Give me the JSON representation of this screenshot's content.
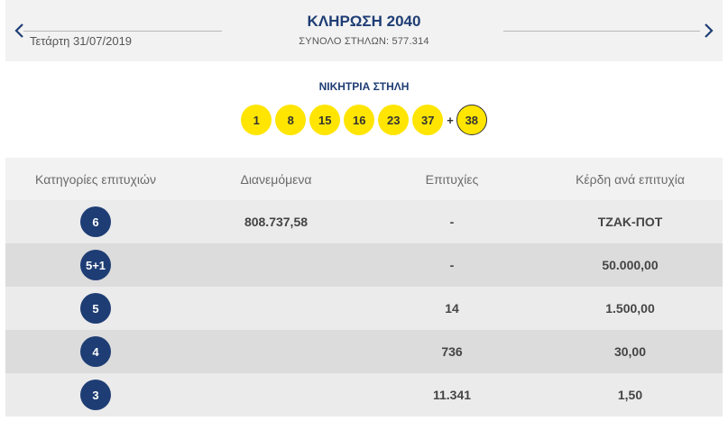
{
  "header": {
    "date": "Τετάρτη 31/07/2019",
    "title": "ΚΛΗΡΩΣΗ 2040",
    "total_columns": "ΣΥΝΟΛΟ ΣΤΗΛΩΝ: 577.314",
    "prev_icon": "chevron-left-icon",
    "next_icon": "chevron-right-icon"
  },
  "winning": {
    "label": "ΝΙΚΗΤΡΙΑ ΣΤΗΛΗ",
    "numbers": [
      "1",
      "8",
      "15",
      "16",
      "23",
      "37"
    ],
    "plus": "+",
    "joker": "38"
  },
  "table": {
    "headers": [
      "Κατηγορίες επιτυχιών",
      "Διανεμόμενα",
      "Επιτυχίες",
      "Κέρδη ανά επιτυχία"
    ],
    "rows": [
      {
        "category": "6",
        "distributed": "808.737,58",
        "winners": "-",
        "prize": "ΤΖΑΚ-ΠΟΤ"
      },
      {
        "category": "5+1",
        "distributed": "",
        "winners": "-",
        "prize": "50.000,00"
      },
      {
        "category": "5",
        "distributed": "",
        "winners": "14",
        "prize": "1.500,00"
      },
      {
        "category": "4",
        "distributed": "",
        "winners": "736",
        "prize": "30,00"
      },
      {
        "category": "3",
        "distributed": "",
        "winners": "11.341",
        "prize": "1,50"
      }
    ]
  },
  "colors": {
    "navy": "#1e3d74",
    "ball_yellow": "#ffe500",
    "row_light": "#ebebeb",
    "row_dark": "#dcdcdc"
  }
}
